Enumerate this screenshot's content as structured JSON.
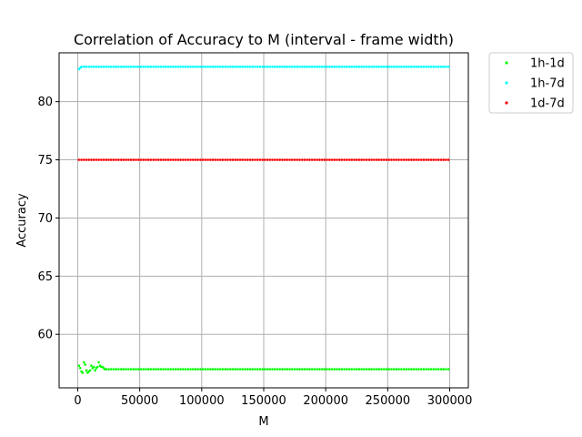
{
  "chart_data": {
    "type": "scatter",
    "title": "Correlation of Accuracy to M (interval - frame width)",
    "xlabel": "M",
    "ylabel": "Accuracy",
    "xlim": [
      -15000,
      315000
    ],
    "ylim": [
      55.4,
      84.2
    ],
    "xticks": [
      0,
      50000,
      100000,
      150000,
      200000,
      250000,
      300000
    ],
    "yticks": [
      60,
      65,
      70,
      75,
      80
    ],
    "grid": true,
    "legend_position": "outside-top-right",
    "series": [
      {
        "name": "1h-1d",
        "color": "#00ff00",
        "points": [
          [
            1000,
            57.3
          ],
          [
            2000,
            57.1
          ],
          [
            3000,
            56.8
          ],
          [
            4000,
            56.7
          ],
          [
            5000,
            57.6
          ],
          [
            6000,
            57.4
          ],
          [
            7000,
            56.9
          ],
          [
            8000,
            56.7
          ],
          [
            9000,
            56.8
          ],
          [
            10000,
            56.9
          ],
          [
            11000,
            57.3
          ],
          [
            12000,
            57.1
          ],
          [
            13000,
            57.2
          ],
          [
            14000,
            56.9
          ],
          [
            15000,
            57.1
          ],
          [
            16000,
            57.2
          ],
          [
            17000,
            57.6
          ],
          [
            18000,
            57.3
          ],
          [
            19000,
            57.2
          ],
          [
            20000,
            57.2
          ],
          [
            21000,
            57.1
          ],
          [
            22000,
            57.0
          ]
        ],
        "plateau": {
          "from": 23000,
          "to": 299000,
          "step": 2000,
          "value": 57.0
        }
      },
      {
        "name": "1h-7d",
        "color": "#00ffff",
        "points": [
          [
            1000,
            82.8
          ],
          [
            2000,
            82.9
          ]
        ],
        "plateau": {
          "from": 3000,
          "to": 299000,
          "step": 2000,
          "value": 83.0
        }
      },
      {
        "name": "1d-7d",
        "color": "#ff0000",
        "points": [],
        "plateau": {
          "from": 1000,
          "to": 299000,
          "step": 2000,
          "value": 75.0
        }
      }
    ]
  }
}
